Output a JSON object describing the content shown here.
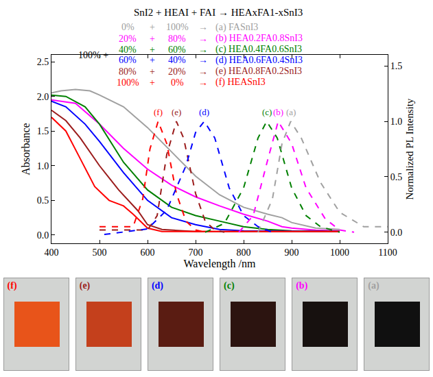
{
  "chart_data": {
    "type": "line",
    "x_label": "Wavelength /nm",
    "y_label": "Absorbance",
    "y2_label": "Normalized PL Intensity",
    "xlim": [
      400,
      1100
    ],
    "xticks": [
      400,
      500,
      600,
      700,
      800,
      900,
      1000,
      1100
    ],
    "ylim": [
      -0.12,
      2.6
    ],
    "yticks": [
      {
        "value": 0,
        "label": "0.0"
      },
      {
        "value": 0.5,
        "label": "0.5"
      },
      {
        "value": 1,
        "label": "1.0"
      },
      {
        "value": 1.5,
        "label": "1.5"
      },
      {
        "value": 2,
        "label": "2.0"
      },
      {
        "value": 2.5,
        "label": "2.5"
      }
    ],
    "y2lim": [
      -0.1,
      1.6
    ],
    "y2ticks": [
      {
        "value": 0,
        "label": "0.0"
      },
      {
        "value": 0.5,
        "label": "0.5"
      },
      {
        "value": 1,
        "label": "1.0"
      },
      {
        "value": 1.5,
        "label": "1.5"
      }
    ],
    "grid": false,
    "key": {
      "header": "SnI2 + HEAI + FAI → HEAxFA1-xSnI3",
      "prefix": "100% +",
      "plus": "+",
      "arrow": "→",
      "rows": [
        {
          "hea": "0%",
          "fa": "100%"
        },
        {
          "hea": "20%",
          "fa": "80%"
        },
        {
          "hea": "40%",
          "fa": "60%"
        },
        {
          "hea": "60%",
          "fa": "40%"
        },
        {
          "hea": "80%",
          "fa": "20%"
        },
        {
          "hea": "100%",
          "fa": "0%"
        }
      ]
    },
    "series": [
      {
        "name": "(a) FASnI3",
        "color": "#a0a0a0",
        "line_style": "solid",
        "x": [
          400,
          420,
          450,
          480,
          500,
          550,
          600,
          650,
          700,
          750,
          800,
          850,
          880,
          900,
          950,
          1000
        ],
        "values": [
          2.05,
          2.08,
          2.1,
          2.08,
          2.02,
          1.85,
          1.55,
          1.2,
          0.85,
          0.58,
          0.4,
          0.3,
          0.25,
          0.18,
          0.1,
          0.08
        ]
      },
      {
        "name": "(b) HEA0.2FA0.8SnI3",
        "color": "#ff00ff",
        "line_style": "solid",
        "x": [
          400,
          450,
          500,
          550,
          600,
          650,
          700,
          750,
          800,
          850,
          880,
          900,
          950,
          1000
        ],
        "values": [
          1.95,
          1.9,
          1.6,
          1.25,
          0.95,
          0.72,
          0.55,
          0.42,
          0.3,
          0.2,
          0.12,
          0.1,
          0.07,
          0.06
        ]
      },
      {
        "name": "(c) HEA0.4FA0.6SnI3",
        "color": "#008000",
        "line_style": "solid",
        "x": [
          400,
          430,
          470,
          500,
          550,
          600,
          650,
          700,
          750,
          800,
          850,
          900,
          1000
        ],
        "values": [
          2.02,
          2.0,
          1.85,
          1.6,
          1.05,
          0.65,
          0.4,
          0.28,
          0.2,
          0.12,
          0.08,
          0.06,
          0.05
        ]
      },
      {
        "name": "(d) HEA0.6FA0.4SnI3",
        "color": "#0000ff",
        "line_style": "solid",
        "x": [
          400,
          430,
          470,
          500,
          550,
          600,
          650,
          700,
          750,
          800,
          1000
        ],
        "values": [
          1.93,
          1.85,
          1.6,
          1.35,
          0.9,
          0.5,
          0.25,
          0.15,
          0.08,
          0.06,
          0.05
        ]
      },
      {
        "name": "(e) HEA0.8FA0.2SnI3",
        "color": "#9b1c1c",
        "line_style": "solid",
        "x": [
          400,
          430,
          460,
          500,
          540,
          580,
          600,
          630,
          700,
          1000
        ],
        "values": [
          1.8,
          1.65,
          1.4,
          1.0,
          0.65,
          0.35,
          0.15,
          0.08,
          0.05,
          0.05
        ]
      },
      {
        "name": "(f) HEASnI3",
        "color": "#ff0000",
        "line_style": "solid",
        "x": [
          400,
          430,
          460,
          490,
          520,
          550,
          570,
          600,
          630,
          1000
        ],
        "values": [
          1.7,
          1.5,
          1.1,
          0.7,
          0.5,
          0.42,
          0.3,
          0.1,
          0.05,
          0.05
        ]
      },
      {
        "name": "(f)",
        "color": "#ff0000",
        "line_style": "dash",
        "axis": "y2",
        "x": [
          500,
          570,
          590,
          605,
          622,
          640,
          660,
          680,
          700,
          720
        ],
        "values": [
          0.05,
          0.05,
          0.3,
          0.75,
          1.0,
          0.8,
          0.35,
          0.1,
          0.02,
          0
        ]
      },
      {
        "name": "(e)",
        "color": "#9b1c1c",
        "line_style": "dash",
        "axis": "y2",
        "x": [
          500,
          600,
          620,
          640,
          660,
          675,
          700,
          720,
          740,
          760
        ],
        "values": [
          0.02,
          0.02,
          0.15,
          0.7,
          1.0,
          0.85,
          0.35,
          0.1,
          0.02,
          0
        ]
      },
      {
        "name": "(d)",
        "color": "#0000ff",
        "line_style": "dash",
        "axis": "y2",
        "x": [
          510,
          600,
          640,
          680,
          700,
          718,
          740,
          770,
          800,
          830,
          860
        ],
        "values": [
          -0.02,
          0.03,
          0.2,
          0.6,
          0.9,
          1.0,
          0.85,
          0.4,
          0.15,
          0.05,
          0
        ]
      },
      {
        "name": "(c)",
        "color": "#008000",
        "line_style": "dash",
        "axis": "y2",
        "x": [
          720,
          760,
          800,
          830,
          848,
          870,
          900,
          930,
          960,
          1000
        ],
        "values": [
          0,
          0.08,
          0.4,
          0.85,
          1.0,
          0.85,
          0.4,
          0.15,
          0.05,
          0
        ]
      },
      {
        "name": "(b)",
        "color": "#ff00ff",
        "line_style": "dash",
        "axis": "y2",
        "x": [
          790,
          820,
          850,
          872,
          900,
          930,
          970,
          1000,
          1030
        ],
        "values": [
          0,
          0.15,
          0.65,
          1.0,
          0.8,
          0.4,
          0.12,
          0.02,
          0
        ]
      },
      {
        "name": "(a)",
        "color": "#a0a0a0",
        "line_style": "dash",
        "axis": "y2",
        "x": [
          830,
          860,
          880,
          898,
          920,
          960,
          1000,
          1050,
          1100
        ],
        "values": [
          0,
          0.3,
          0.8,
          1.0,
          0.85,
          0.45,
          0.18,
          0.05,
          0.05
        ]
      }
    ]
  },
  "photos": [
    {
      "label": "(f)",
      "color": "#e8541a"
    },
    {
      "label": "(e)",
      "color": "#c4401c"
    },
    {
      "label": "(d)",
      "color": "#5a1c12"
    },
    {
      "label": "(c)",
      "color": "#2c1410"
    },
    {
      "label": "(b)",
      "color": "#17110f"
    },
    {
      "label": "(a)",
      "color": "#101010"
    }
  ]
}
